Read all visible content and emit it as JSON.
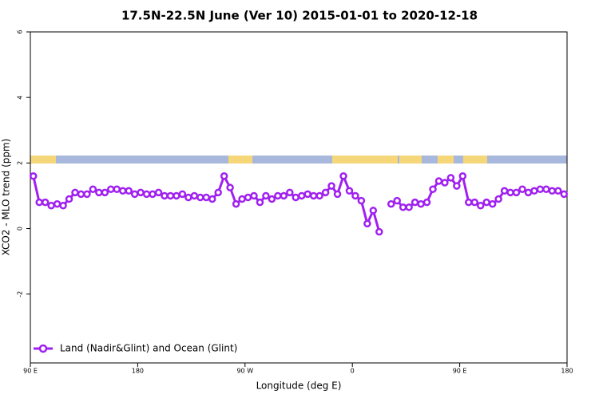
{
  "chart_data": {
    "type": "line",
    "title": "17.5N-22.5N June (Ver 10)   2015-01-01 to 2020-12-18",
    "x_label": "Longitude (deg E)",
    "y_label": "XCO2 - MLO trend (ppm)",
    "xlim": [
      90,
      540
    ],
    "xticks": [
      {
        "value": 90,
        "label": "90 E"
      },
      {
        "value": 180,
        "label": "180"
      },
      {
        "value": 270,
        "label": "90 W"
      },
      {
        "value": 360,
        "label": "0"
      },
      {
        "value": 450,
        "label": "90 E"
      },
      {
        "value": 540,
        "label": "180"
      }
    ],
    "ylim": [
      -4.1,
      6
    ],
    "yticks": [
      -2,
      0,
      2,
      4,
      6
    ],
    "legend": "bottom-left",
    "x": [
      92.5,
      97.5,
      102.5,
      107.5,
      112.5,
      117.5,
      122.5,
      127.5,
      132.5,
      137.5,
      142.5,
      147.5,
      152.5,
      157.5,
      162.5,
      167.5,
      172.5,
      177.5,
      182.5,
      187.5,
      192.5,
      197.5,
      202.5,
      207.5,
      212.5,
      217.5,
      222.5,
      227.5,
      232.5,
      237.5,
      242.5,
      247.5,
      252.5,
      257.5,
      262.5,
      267.5,
      272.5,
      277.5,
      282.5,
      287.5,
      292.5,
      297.5,
      302.5,
      307.5,
      312.5,
      317.5,
      322.5,
      327.5,
      332.5,
      337.5,
      342.5,
      347.5,
      352.5,
      357.5,
      362.5,
      367.5,
      372.5,
      377.5,
      382.5,
      387.5,
      392.5,
      397.5,
      402.5,
      407.5,
      412.5,
      417.5,
      422.5,
      427.5,
      432.5,
      437.5,
      442.5,
      447.5,
      452.5,
      457.5,
      462.5,
      467.5,
      472.5,
      477.5,
      482.5,
      487.5,
      492.5,
      497.5,
      502.5,
      507.5,
      512.5,
      517.5,
      522.5,
      527.5,
      532.5,
      537.5
    ],
    "series": [
      {
        "name": "Land (Nadir&Glint) and Ocean (Glint)",
        "color": "#a020f0",
        "values": [
          1.6,
          0.8,
          0.8,
          0.7,
          0.75,
          0.7,
          0.9,
          1.1,
          1.05,
          1.05,
          1.2,
          1.1,
          1.1,
          1.2,
          1.2,
          1.15,
          1.15,
          1.05,
          1.1,
          1.05,
          1.05,
          1.1,
          1.0,
          1.0,
          1.0,
          1.05,
          0.95,
          1.0,
          0.95,
          0.95,
          0.9,
          1.1,
          1.6,
          1.25,
          0.75,
          0.9,
          0.95,
          1.0,
          0.8,
          1.0,
          0.9,
          1.0,
          1.0,
          1.1,
          0.95,
          1.0,
          1.05,
          1.0,
          1.0,
          1.1,
          1.3,
          1.05,
          1.6,
          1.15,
          1.0,
          0.85,
          0.15,
          0.55,
          -0.1,
          null,
          0.75,
          0.85,
          0.65,
          0.65,
          0.8,
          0.75,
          0.8,
          1.2,
          1.45,
          1.4,
          1.55,
          1.3,
          1.6,
          0.8,
          0.8,
          0.7,
          0.8,
          0.75,
          0.9,
          1.15,
          1.1,
          1.1,
          1.2,
          1.1,
          1.15,
          1.2,
          1.2,
          1.15,
          1.15,
          1.05
        ]
      }
    ]
  }
}
